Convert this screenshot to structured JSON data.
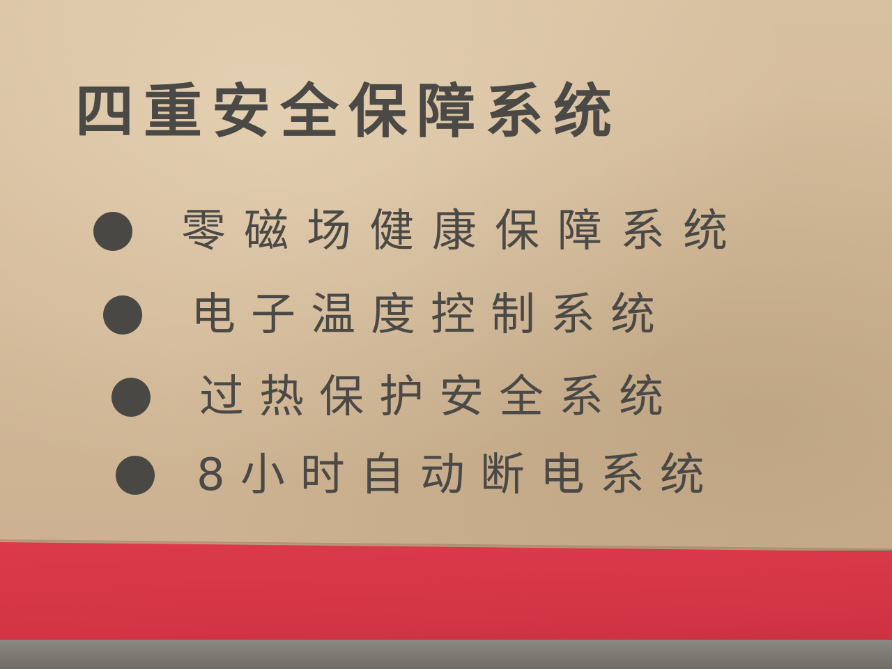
{
  "title": "四重安全保障系统",
  "features": [
    "零磁场健康保障系统",
    "电子温度控制系统",
    "过热保护安全系统",
    "8小时自动断电系统"
  ],
  "colors": {
    "cardboard": "#d2b998",
    "print": "#4b4945",
    "band": "#d33545"
  }
}
